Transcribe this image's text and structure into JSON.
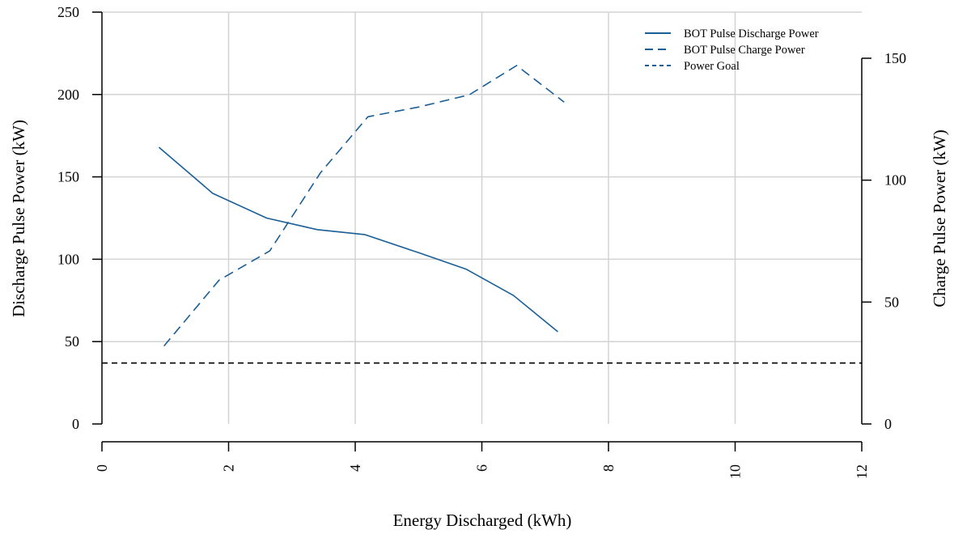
{
  "chart_data": {
    "type": "line",
    "title": "",
    "xlabel": "Energy Discharged (kWh)",
    "ylabel_left": "Discharge Pulse Power (kW)",
    "ylabel_right": "Charge Pulse Power (kW)",
    "xlim": [
      0,
      12
    ],
    "ylim_left": [
      0,
      250
    ],
    "ylim_right": [
      0,
      150
    ],
    "x_ticks": [
      "0",
      "2",
      "4",
      "6",
      "8",
      "10",
      "12"
    ],
    "y_left_ticks": [
      "0",
      "50",
      "100",
      "150",
      "200",
      "250"
    ],
    "y_right_ticks": [
      "0",
      "50",
      "100",
      "150"
    ],
    "grid": true,
    "legend_position": "top-right",
    "series": [
      {
        "name": "BOT Pulse Discharge Power",
        "axis": "left",
        "style": "solid",
        "color": "#1a5e96",
        "x": [
          0.9,
          1.75,
          2.6,
          3.4,
          4.15,
          5.0,
          5.75,
          6.5,
          7.2
        ],
        "y": [
          168,
          140,
          125,
          118,
          115,
          104,
          94,
          78,
          56
        ]
      },
      {
        "name": "BOT Pulse Charge Power",
        "axis": "right",
        "style": "dashed",
        "color": "#1a5e96",
        "x": [
          0.98,
          1.85,
          2.65,
          3.45,
          4.2,
          5.0,
          5.8,
          6.55,
          7.3
        ],
        "y": [
          32,
          59,
          71,
          103,
          126,
          130,
          135,
          147,
          132
        ]
      },
      {
        "name": "Power Goal",
        "axis": "left",
        "style": "dotted",
        "color": "#1a5e96",
        "x": [
          0,
          12
        ],
        "y": [
          37,
          37
        ]
      }
    ],
    "goal_line_color": "#000000",
    "grid_color": "#d3d3d3"
  }
}
